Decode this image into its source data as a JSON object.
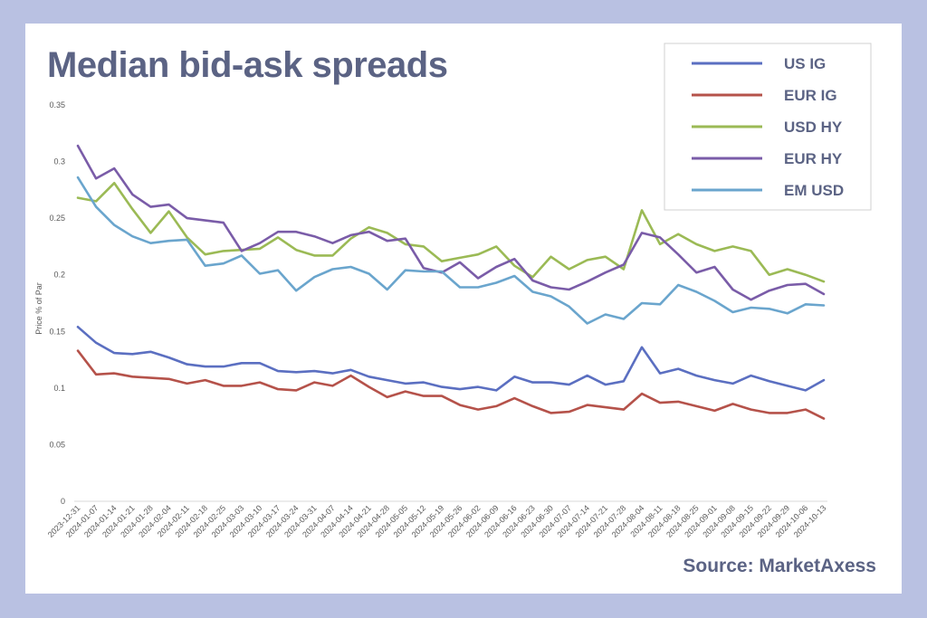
{
  "title": "Median bid-ask spreads",
  "source": "Source: MarketAxess",
  "chart_data": {
    "type": "line",
    "title": "Median bid-ask spreads",
    "ylabel": "Price % of Par",
    "xlabel": "",
    "ylim": [
      0,
      0.35
    ],
    "yticks": [
      "0",
      "0.05",
      "0.1",
      "0.15",
      "0.2",
      "0.25",
      "0.3",
      "0.35"
    ],
    "grid": false,
    "legend": "top-right",
    "x": [
      "2023-12-31",
      "2024-01-07",
      "2024-01-14",
      "2024-01-21",
      "2024-01-28",
      "2024-02-04",
      "2024-02-11",
      "2024-02-18",
      "2024-02-25",
      "2024-03-03",
      "2024-03-10",
      "2024-03-17",
      "2024-03-24",
      "2024-03-31",
      "2024-04-07",
      "2024-04-14",
      "2024-04-21",
      "2024-04-28",
      "2024-05-05",
      "2024-05-12",
      "2024-05-19",
      "2024-05-26",
      "2024-06-02",
      "2024-06-09",
      "2024-06-16",
      "2024-06-23",
      "2024-06-30",
      "2024-07-07",
      "2024-07-14",
      "2024-07-21",
      "2024-07-28",
      "2024-08-04",
      "2024-08-11",
      "2024-08-18",
      "2024-08-25",
      "2024-09-01",
      "2024-09-08",
      "2024-09-15",
      "2024-09-22",
      "2024-09-29",
      "2024-10-06",
      "2024-10-13"
    ],
    "series": [
      {
        "name": "US IG",
        "color": "#5b6fc1",
        "values": [
          0.154,
          0.14,
          0.131,
          0.13,
          0.132,
          0.127,
          0.121,
          0.119,
          0.119,
          0.122,
          0.122,
          0.115,
          0.114,
          0.115,
          0.113,
          0.116,
          0.11,
          0.107,
          0.104,
          0.105,
          0.101,
          0.099,
          0.101,
          0.098,
          0.11,
          0.105,
          0.105,
          0.103,
          0.111,
          0.103,
          0.106,
          0.136,
          0.113,
          0.117,
          0.111,
          0.107,
          0.104,
          0.111,
          0.106,
          0.102,
          0.098,
          0.107
        ]
      },
      {
        "name": "EUR IG",
        "color": "#b5524a",
        "values": [
          0.133,
          0.112,
          0.113,
          0.11,
          0.109,
          0.108,
          0.104,
          0.107,
          0.102,
          0.102,
          0.105,
          0.099,
          0.098,
          0.105,
          0.102,
          0.111,
          0.101,
          0.092,
          0.097,
          0.093,
          0.093,
          0.085,
          0.081,
          0.084,
          0.091,
          0.084,
          0.078,
          0.079,
          0.085,
          0.083,
          0.081,
          0.095,
          0.087,
          0.088,
          0.084,
          0.08,
          0.086,
          0.081,
          0.078,
          0.078,
          0.081,
          0.073
        ]
      },
      {
        "name": "USD HY",
        "color": "#9bba55",
        "values": [
          0.268,
          0.265,
          0.281,
          0.258,
          0.237,
          0.256,
          0.233,
          0.218,
          0.221,
          0.222,
          0.223,
          0.233,
          0.222,
          0.217,
          0.217,
          0.232,
          0.242,
          0.237,
          0.227,
          0.225,
          0.212,
          0.215,
          0.218,
          0.225,
          0.208,
          0.198,
          0.216,
          0.205,
          0.213,
          0.216,
          0.205,
          0.257,
          0.227,
          0.236,
          0.227,
          0.221,
          0.225,
          0.221,
          0.2,
          0.205,
          0.2,
          0.194
        ]
      },
      {
        "name": "EUR HY",
        "color": "#7a5ca8",
        "values": [
          0.314,
          0.285,
          0.294,
          0.271,
          0.26,
          0.262,
          0.25,
          0.248,
          0.246,
          0.221,
          0.228,
          0.238,
          0.238,
          0.234,
          0.228,
          0.235,
          0.238,
          0.23,
          0.232,
          0.206,
          0.202,
          0.211,
          0.197,
          0.207,
          0.214,
          0.195,
          0.189,
          0.187,
          0.194,
          0.202,
          0.209,
          0.237,
          0.233,
          0.218,
          0.202,
          0.207,
          0.187,
          0.178,
          0.186,
          0.191,
          0.192,
          0.183
        ]
      },
      {
        "name": "EM USD",
        "color": "#6aa5cd",
        "values": [
          0.286,
          0.26,
          0.244,
          0.234,
          0.228,
          0.23,
          0.231,
          0.208,
          0.21,
          0.217,
          0.201,
          0.204,
          0.186,
          0.198,
          0.205,
          0.207,
          0.201,
          0.187,
          0.204,
          0.203,
          0.203,
          0.189,
          0.189,
          0.193,
          0.199,
          0.185,
          0.181,
          0.172,
          0.157,
          0.165,
          0.161,
          0.175,
          0.174,
          0.191,
          0.185,
          0.177,
          0.167,
          0.171,
          0.17,
          0.166,
          0.174,
          0.173
        ]
      }
    ]
  }
}
